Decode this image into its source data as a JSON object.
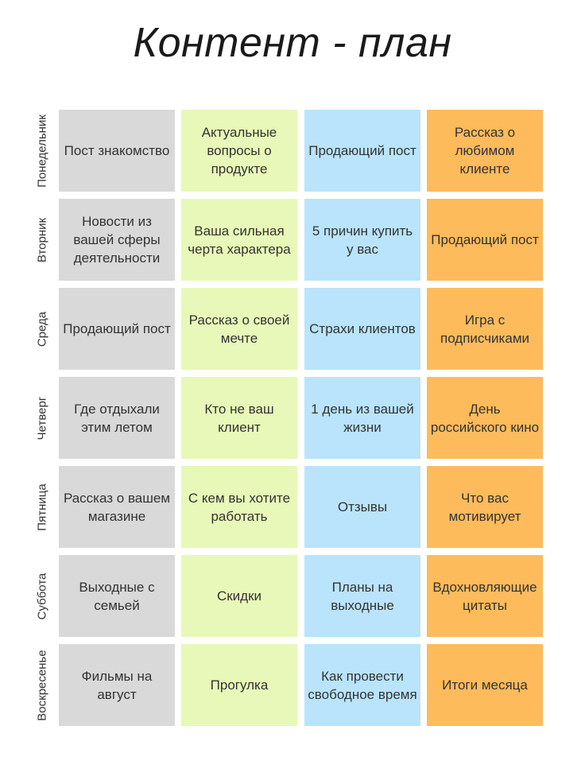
{
  "title": "Контент - план",
  "colors": {
    "column_1": "#d9d9d9",
    "column_2": "#e8f8b8",
    "column_3": "#b9e4fb",
    "column_4": "#fdbb5b"
  },
  "rows": [
    {
      "day": "Понедельник",
      "cells": [
        "Пост знакомство",
        "Актуальные вопросы о продукте",
        "Продающий пост",
        "Рассказ о любимом клиенте"
      ]
    },
    {
      "day": "Вторник",
      "cells": [
        "Новости из вашей сферы деятельности",
        "Ваша сильная черта характера",
        "5 причин купить у вас",
        "Продающий пост"
      ]
    },
    {
      "day": "Среда",
      "cells": [
        "Продающий пост",
        "Рассказ о своей мечте",
        "Страхи клиентов",
        "Игра с подписчиками"
      ]
    },
    {
      "day": "Четверг",
      "cells": [
        "Где отдыхали этим летом",
        "Кто не ваш клиент",
        "1 день из вашей жизни",
        "День российского кино"
      ]
    },
    {
      "day": "Пятница",
      "cells": [
        "Рассказ о вашем магазине",
        "С кем вы хотите работать",
        "Отзывы",
        "Что вас мотивирует"
      ]
    },
    {
      "day": "Суббота",
      "cells": [
        "Выходные с семьей",
        "Скидки",
        "Планы на выходные",
        "Вдохновляющие цитаты"
      ]
    },
    {
      "day": "Воскресенье",
      "cells": [
        "Фильмы на август",
        "Прогулка",
        "Как провести свободное время",
        "Итоги месяца"
      ]
    }
  ]
}
